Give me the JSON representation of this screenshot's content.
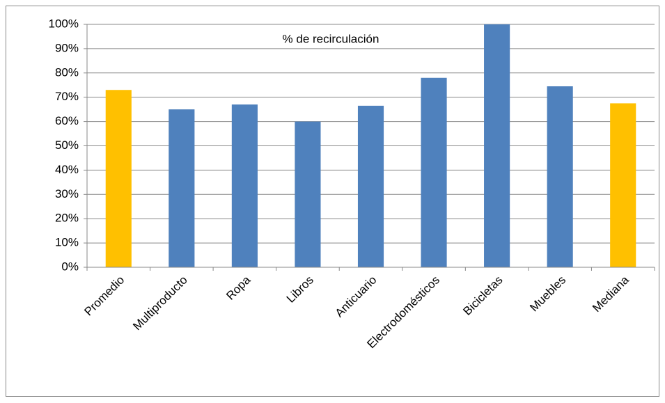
{
  "chart_data": {
    "type": "bar",
    "title": "% de recirculación",
    "categories": [
      "Promedio",
      "Multiproducto",
      "Ropa",
      "Libros",
      "Anticuario",
      "Electrodomésticos",
      "Bicicletas",
      "Muebles",
      "Mediana"
    ],
    "values": [
      73,
      65,
      67,
      60,
      66.5,
      78,
      100,
      74.5,
      67.5
    ],
    "colors": [
      "#ffc000",
      "#4f81bd",
      "#4f81bd",
      "#4f81bd",
      "#4f81bd",
      "#4f81bd",
      "#4f81bd",
      "#4f81bd",
      "#ffc000"
    ],
    "ylim": [
      0,
      100
    ],
    "yticks": [
      {
        "value": 0,
        "label": "0%"
      },
      {
        "value": 10,
        "label": "10%"
      },
      {
        "value": 20,
        "label": "20%"
      },
      {
        "value": 30,
        "label": "30%"
      },
      {
        "value": 40,
        "label": "40%"
      },
      {
        "value": 50,
        "label": "50%"
      },
      {
        "value": 60,
        "label": "60%"
      },
      {
        "value": 70,
        "label": "70%"
      },
      {
        "value": 80,
        "label": "80%"
      },
      {
        "value": 90,
        "label": "90%"
      },
      {
        "value": 100,
        "label": "100%"
      }
    ],
    "grid": true
  }
}
